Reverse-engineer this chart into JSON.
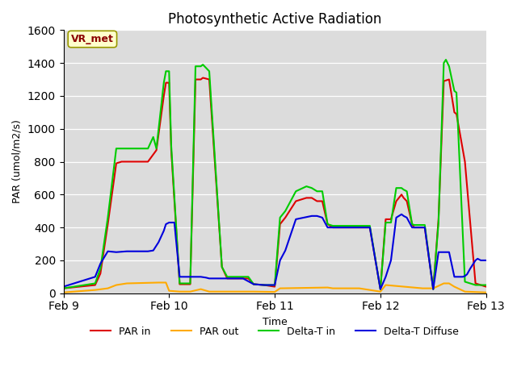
{
  "title": "Photosynthetic Active Radiation",
  "ylabel": "PAR (umol/m2/s)",
  "xlabel": "Time",
  "annotation": "VR_met",
  "ylim": [
    0,
    1600
  ],
  "xlim": [
    0,
    4
  ],
  "background_color": "#dcdcdc",
  "line_colors": {
    "PAR in": "#dd0000",
    "PAR out": "#ffaa00",
    "Delta-T in": "#00cc00",
    "Delta-T Diffuse": "#0000dd"
  },
  "x_ticks": [
    0,
    1,
    2,
    3,
    4
  ],
  "x_tick_labels": [
    "Feb 9",
    "Feb 10",
    "Feb 11",
    "Feb 12",
    "Feb 13"
  ],
  "PAR_in_x": [
    0.0,
    0.3,
    0.35,
    0.42,
    0.5,
    0.55,
    0.6,
    0.7,
    0.8,
    0.88,
    0.95,
    0.97,
    1.0,
    1.02,
    1.1,
    1.15,
    1.2,
    1.25,
    1.3,
    1.32,
    1.38,
    1.5,
    1.55,
    1.6,
    1.65,
    1.7,
    1.75,
    1.8,
    1.9,
    2.0,
    2.05,
    2.1,
    2.2,
    2.3,
    2.35,
    2.4,
    2.45,
    2.5,
    2.55,
    2.6,
    2.7,
    2.8,
    2.9,
    3.0,
    3.05,
    3.1,
    3.15,
    3.2,
    3.22,
    3.25,
    3.3,
    3.32,
    3.35,
    3.37,
    3.4,
    3.42,
    3.5,
    3.55,
    3.6,
    3.65,
    3.7,
    3.72,
    3.8,
    3.9,
    4.0
  ],
  "PAR_in_y": [
    30,
    50,
    120,
    420,
    790,
    800,
    800,
    800,
    800,
    870,
    1200,
    1280,
    1280,
    870,
    55,
    55,
    55,
    1300,
    1300,
    1310,
    1300,
    160,
    90,
    90,
    90,
    90,
    90,
    55,
    50,
    40,
    420,
    460,
    560,
    580,
    580,
    560,
    560,
    420,
    400,
    400,
    400,
    400,
    400,
    25,
    450,
    450,
    560,
    600,
    580,
    560,
    420,
    400,
    400,
    400,
    400,
    400,
    25,
    450,
    1290,
    1300,
    1100,
    1090,
    800,
    60,
    40
  ],
  "PAR_out_x": [
    0.0,
    0.3,
    0.42,
    0.5,
    0.6,
    0.9,
    0.97,
    1.0,
    1.1,
    1.2,
    1.3,
    1.38,
    1.5,
    1.8,
    2.0,
    2.05,
    2.5,
    2.55,
    2.8,
    3.0,
    3.05,
    3.4,
    3.5,
    3.6,
    3.65,
    3.7,
    3.8,
    4.0
  ],
  "PAR_out_y": [
    5,
    20,
    30,
    50,
    60,
    65,
    65,
    15,
    10,
    10,
    25,
    10,
    10,
    10,
    8,
    30,
    35,
    30,
    30,
    10,
    50,
    30,
    30,
    60,
    60,
    40,
    10,
    5
  ],
  "DT_in_x": [
    0.0,
    0.3,
    0.35,
    0.42,
    0.5,
    0.55,
    0.6,
    0.7,
    0.8,
    0.85,
    0.88,
    0.95,
    0.97,
    1.0,
    1.02,
    1.1,
    1.15,
    1.2,
    1.25,
    1.3,
    1.32,
    1.38,
    1.5,
    1.55,
    1.6,
    1.65,
    1.7,
    1.75,
    1.8,
    1.9,
    2.0,
    2.05,
    2.1,
    2.2,
    2.3,
    2.35,
    2.4,
    2.45,
    2.5,
    2.55,
    2.6,
    2.7,
    2.8,
    2.9,
    3.0,
    3.05,
    3.1,
    3.15,
    3.2,
    3.22,
    3.25,
    3.3,
    3.32,
    3.35,
    3.37,
    3.4,
    3.42,
    3.5,
    3.55,
    3.6,
    3.62,
    3.65,
    3.7,
    3.72,
    3.8,
    3.9,
    4.0
  ],
  "DT_in_y": [
    30,
    60,
    150,
    460,
    880,
    880,
    880,
    880,
    880,
    950,
    880,
    1280,
    1350,
    1350,
    900,
    60,
    60,
    60,
    1380,
    1380,
    1390,
    1350,
    160,
    100,
    100,
    100,
    100,
    100,
    55,
    50,
    50,
    460,
    500,
    620,
    650,
    640,
    620,
    620,
    420,
    410,
    410,
    410,
    410,
    410,
    25,
    430,
    430,
    640,
    640,
    630,
    620,
    420,
    415,
    415,
    415,
    415,
    415,
    25,
    430,
    1400,
    1420,
    1380,
    1230,
    1220,
    70,
    50,
    50
  ],
  "DT_diff_x": [
    0.0,
    0.3,
    0.35,
    0.42,
    0.5,
    0.6,
    0.7,
    0.8,
    0.85,
    0.9,
    0.95,
    0.97,
    1.0,
    1.02,
    1.05,
    1.1,
    1.15,
    1.2,
    1.25,
    1.3,
    1.35,
    1.38,
    1.5,
    1.55,
    1.6,
    1.7,
    1.8,
    1.9,
    2.0,
    2.05,
    2.1,
    2.2,
    2.35,
    2.4,
    2.45,
    2.5,
    2.55,
    2.6,
    2.7,
    2.8,
    2.9,
    3.0,
    3.05,
    3.1,
    3.15,
    3.2,
    3.22,
    3.25,
    3.3,
    3.32,
    3.35,
    3.37,
    3.4,
    3.42,
    3.5,
    3.55,
    3.6,
    3.65,
    3.7,
    3.72,
    3.78,
    3.8,
    3.82,
    3.85,
    3.88,
    3.9,
    3.92,
    3.95,
    4.0
  ],
  "DT_diff_y": [
    40,
    100,
    180,
    255,
    250,
    255,
    255,
    255,
    260,
    310,
    380,
    420,
    430,
    430,
    430,
    100,
    100,
    100,
    100,
    100,
    95,
    90,
    90,
    90,
    90,
    90,
    55,
    50,
    50,
    200,
    260,
    450,
    470,
    470,
    460,
    400,
    400,
    400,
    400,
    400,
    400,
    25,
    100,
    200,
    460,
    480,
    470,
    460,
    400,
    400,
    400,
    400,
    400,
    400,
    25,
    250,
    250,
    250,
    100,
    100,
    100,
    105,
    115,
    150,
    180,
    200,
    210,
    200,
    200
  ]
}
